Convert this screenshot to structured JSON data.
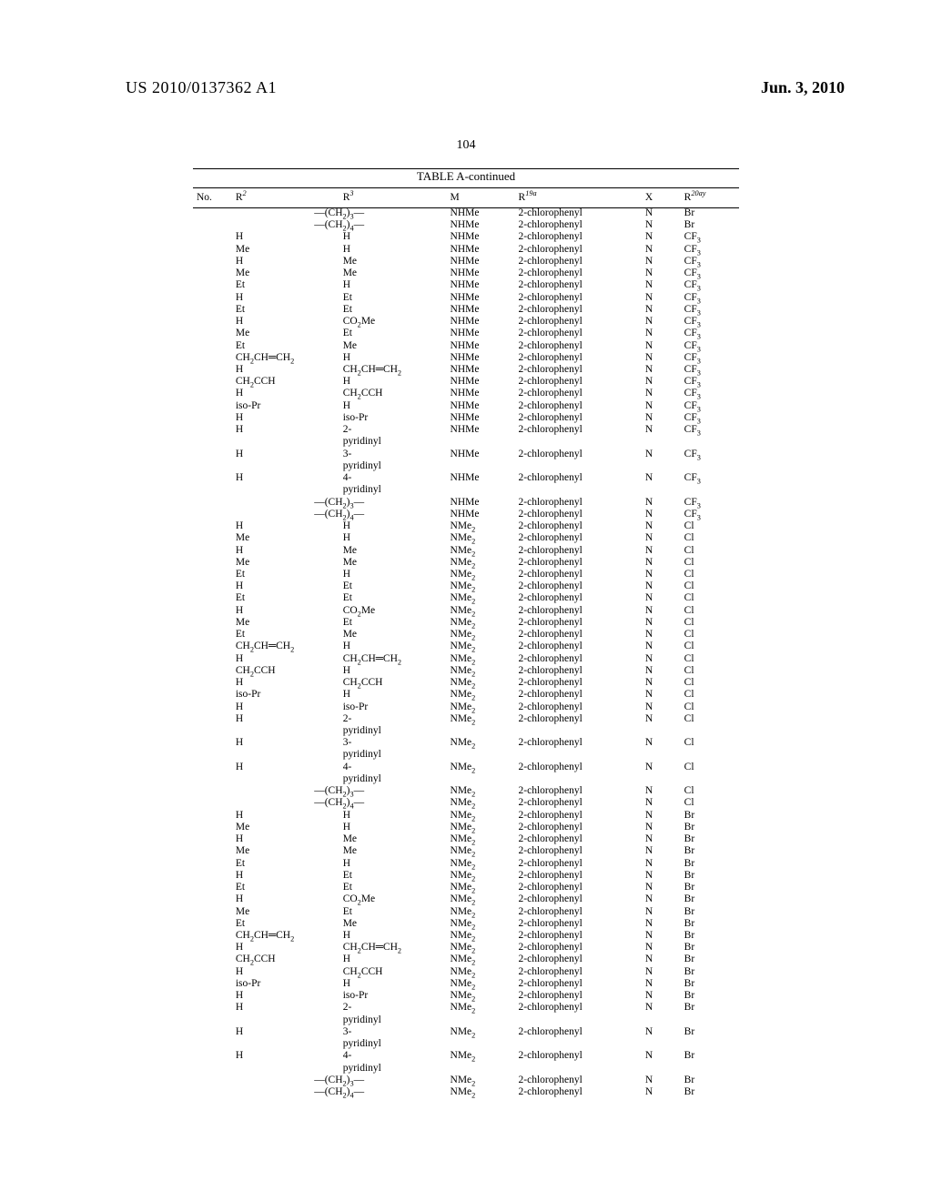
{
  "header": {
    "publication": "US 2010/0137362 A1",
    "date": "Jun. 3, 2010",
    "page": "104"
  },
  "table": {
    "title": "TABLE A-continued",
    "columns": {
      "no": "No.",
      "r2": "R^{2}",
      "r3": "R^{3}",
      "m": "M",
      "r19a": "R^{19a}",
      "x": "X",
      "r20ay": "R^{20ay}"
    },
    "rows": [
      {
        "r2": "",
        "r3": "—(CH_{2})_{3}—",
        "span": true,
        "m": "NHMe",
        "r19": "2-chlorophenyl",
        "x": "N",
        "r20": "Br"
      },
      {
        "r2": "",
        "r3": "—(CH_{2})_{4}—",
        "span": true,
        "m": "NHMe",
        "r19": "2-chlorophenyl",
        "x": "N",
        "r20": "Br"
      },
      {
        "r2": "H",
        "r3": "H",
        "m": "NHMe",
        "r19": "2-chlorophenyl",
        "x": "N",
        "r20": "CF_{3}"
      },
      {
        "r2": "Me",
        "r3": "H",
        "m": "NHMe",
        "r19": "2-chlorophenyl",
        "x": "N",
        "r20": "CF_{3}"
      },
      {
        "r2": "H",
        "r3": "Me",
        "m": "NHMe",
        "r19": "2-chlorophenyl",
        "x": "N",
        "r20": "CF_{3}"
      },
      {
        "r2": "Me",
        "r3": "Me",
        "m": "NHMe",
        "r19": "2-chlorophenyl",
        "x": "N",
        "r20": "CF_{3}"
      },
      {
        "r2": "Et",
        "r3": "H",
        "m": "NHMe",
        "r19": "2-chlorophenyl",
        "x": "N",
        "r20": "CF_{3}"
      },
      {
        "r2": "H",
        "r3": "Et",
        "m": "NHMe",
        "r19": "2-chlorophenyl",
        "x": "N",
        "r20": "CF_{3}"
      },
      {
        "r2": "Et",
        "r3": "Et",
        "m": "NHMe",
        "r19": "2-chlorophenyl",
        "x": "N",
        "r20": "CF_{3}"
      },
      {
        "r2": "H",
        "r3": "CO_{2}Me",
        "m": "NHMe",
        "r19": "2-chlorophenyl",
        "x": "N",
        "r20": "CF_{3}"
      },
      {
        "r2": "Me",
        "r3": "Et",
        "m": "NHMe",
        "r19": "2-chlorophenyl",
        "x": "N",
        "r20": "CF_{3}"
      },
      {
        "r2": "Et",
        "r3": "Me",
        "m": "NHMe",
        "r19": "2-chlorophenyl",
        "x": "N",
        "r20": "CF_{3}"
      },
      {
        "r2": "CH_{2}CH=CH_{2}",
        "r3": "H",
        "m": "NHMe",
        "r19": "2-chlorophenyl",
        "x": "N",
        "r20": "CF_{3}"
      },
      {
        "r2": "H",
        "r3": "CH_{2}CH=CH_{2}",
        "m": "NHMe",
        "r19": "2-chlorophenyl",
        "x": "N",
        "r20": "CF_{3}"
      },
      {
        "r2": "CH_{2}CCH",
        "r3": "H",
        "m": "NHMe",
        "r19": "2-chlorophenyl",
        "x": "N",
        "r20": "CF_{3}"
      },
      {
        "r2": "H",
        "r3": "CH_{2}CCH",
        "m": "NHMe",
        "r19": "2-chlorophenyl",
        "x": "N",
        "r20": "CF_{3}"
      },
      {
        "r2": "iso-Pr",
        "r3": "H",
        "m": "NHMe",
        "r19": "2-chlorophenyl",
        "x": "N",
        "r20": "CF_{3}"
      },
      {
        "r2": "H",
        "r3": "iso-Pr",
        "m": "NHMe",
        "r19": "2-chlorophenyl",
        "x": "N",
        "r20": "CF_{3}"
      },
      {
        "r2": "H",
        "r3": "2-\\npyridinyl",
        "m": "NHMe",
        "r19": "2-chlorophenyl",
        "x": "N",
        "r20": "CF_{3}"
      },
      {
        "r2": "H",
        "r3": "3-\\npyridinyl",
        "m": "NHMe",
        "r19": "2-chlorophenyl",
        "x": "N",
        "r20": "CF_{3}"
      },
      {
        "r2": "H",
        "r3": "4-\\npyridinyl",
        "m": "NHMe",
        "r19": "2-chlorophenyl",
        "x": "N",
        "r20": "CF_{3}"
      },
      {
        "r2": "",
        "r3": "—(CH_{2})_{3}—",
        "span": true,
        "m": "NHMe",
        "r19": "2-chlorophenyl",
        "x": "N",
        "r20": "CF_{3}"
      },
      {
        "r2": "",
        "r3": "—(CH_{2})_{4}—",
        "span": true,
        "m": "NHMe",
        "r19": "2-chlorophenyl",
        "x": "N",
        "r20": "CF_{3}"
      },
      {
        "r2": "H",
        "r3": "H",
        "m": "NMe_{2}",
        "r19": "2-chlorophenyl",
        "x": "N",
        "r20": "Cl"
      },
      {
        "r2": "Me",
        "r3": "H",
        "m": "NMe_{2}",
        "r19": "2-chlorophenyl",
        "x": "N",
        "r20": "Cl"
      },
      {
        "r2": "H",
        "r3": "Me",
        "m": "NMe_{2}",
        "r19": "2-chlorophenyl",
        "x": "N",
        "r20": "Cl"
      },
      {
        "r2": "Me",
        "r3": "Me",
        "m": "NMe_{2}",
        "r19": "2-chlorophenyl",
        "x": "N",
        "r20": "Cl"
      },
      {
        "r2": "Et",
        "r3": "H",
        "m": "NMe_{2}",
        "r19": "2-chlorophenyl",
        "x": "N",
        "r20": "Cl"
      },
      {
        "r2": "H",
        "r3": "Et",
        "m": "NMe_{2}",
        "r19": "2-chlorophenyl",
        "x": "N",
        "r20": "Cl"
      },
      {
        "r2": "Et",
        "r3": "Et",
        "m": "NMe_{2}",
        "r19": "2-chlorophenyl",
        "x": "N",
        "r20": "Cl"
      },
      {
        "r2": "H",
        "r3": "CO_{2}Me",
        "m": "NMe_{2}",
        "r19": "2-chlorophenyl",
        "x": "N",
        "r20": "Cl"
      },
      {
        "r2": "Me",
        "r3": "Et",
        "m": "NMe_{2}",
        "r19": "2-chlorophenyl",
        "x": "N",
        "r20": "Cl"
      },
      {
        "r2": "Et",
        "r3": "Me",
        "m": "NMe_{2}",
        "r19": "2-chlorophenyl",
        "x": "N",
        "r20": "Cl"
      },
      {
        "r2": "CH_{2}CH=CH_{2}",
        "r3": "H",
        "m": "NMe_{2}",
        "r19": "2-chlorophenyl",
        "x": "N",
        "r20": "Cl"
      },
      {
        "r2": "H",
        "r3": "CH_{2}CH=CH_{2}",
        "m": "NMe_{2}",
        "r19": "2-chlorophenyl",
        "x": "N",
        "r20": "Cl"
      },
      {
        "r2": "CH_{2}CCH",
        "r3": "H",
        "m": "NMe_{2}",
        "r19": "2-chlorophenyl",
        "x": "N",
        "r20": "Cl"
      },
      {
        "r2": "H",
        "r3": "CH_{2}CCH",
        "m": "NMe_{2}",
        "r19": "2-chlorophenyl",
        "x": "N",
        "r20": "Cl"
      },
      {
        "r2": "iso-Pr",
        "r3": "H",
        "m": "NMe_{2}",
        "r19": "2-chlorophenyl",
        "x": "N",
        "r20": "Cl"
      },
      {
        "r2": "H",
        "r3": "iso-Pr",
        "m": "NMe_{2}",
        "r19": "2-chlorophenyl",
        "x": "N",
        "r20": "Cl"
      },
      {
        "r2": "H",
        "r3": "2-\\npyridinyl",
        "m": "NMe_{2}",
        "r19": "2-chlorophenyl",
        "x": "N",
        "r20": "Cl"
      },
      {
        "r2": "H",
        "r3": "3-\\npyridinyl",
        "m": "NMe_{2}",
        "r19": "2-chlorophenyl",
        "x": "N",
        "r20": "Cl"
      },
      {
        "r2": "H",
        "r3": "4-\\npyridinyl",
        "m": "NMe_{2}",
        "r19": "2-chlorophenyl",
        "x": "N",
        "r20": "Cl"
      },
      {
        "r2": "",
        "r3": "—(CH_{2})_{3}—",
        "span": true,
        "m": "NMe_{2}",
        "r19": "2-chlorophenyl",
        "x": "N",
        "r20": "Cl"
      },
      {
        "r2": "",
        "r3": "—(CH_{2})_{4}—",
        "span": true,
        "m": "NMe_{2}",
        "r19": "2-chlorophenyl",
        "x": "N",
        "r20": "Cl"
      },
      {
        "r2": "H",
        "r3": "H",
        "m": "NMe_{2}",
        "r19": "2-chlorophenyl",
        "x": "N",
        "r20": "Br"
      },
      {
        "r2": "Me",
        "r3": "H",
        "m": "NMe_{2}",
        "r19": "2-chlorophenyl",
        "x": "N",
        "r20": "Br"
      },
      {
        "r2": "H",
        "r3": "Me",
        "m": "NMe_{2}",
        "r19": "2-chlorophenyl",
        "x": "N",
        "r20": "Br"
      },
      {
        "r2": "Me",
        "r3": "Me",
        "m": "NMe_{2}",
        "r19": "2-chlorophenyl",
        "x": "N",
        "r20": "Br"
      },
      {
        "r2": "Et",
        "r3": "H",
        "m": "NMe_{2}",
        "r19": "2-chlorophenyl",
        "x": "N",
        "r20": "Br"
      },
      {
        "r2": "H",
        "r3": "Et",
        "m": "NMe_{2}",
        "r19": "2-chlorophenyl",
        "x": "N",
        "r20": "Br"
      },
      {
        "r2": "Et",
        "r3": "Et",
        "m": "NMe_{2}",
        "r19": "2-chlorophenyl",
        "x": "N",
        "r20": "Br"
      },
      {
        "r2": "H",
        "r3": "CO_{2}Me",
        "m": "NMe_{2}",
        "r19": "2-chlorophenyl",
        "x": "N",
        "r20": "Br"
      },
      {
        "r2": "Me",
        "r3": "Et",
        "m": "NMe_{2}",
        "r19": "2-chlorophenyl",
        "x": "N",
        "r20": "Br"
      },
      {
        "r2": "Et",
        "r3": "Me",
        "m": "NMe_{2}",
        "r19": "2-chlorophenyl",
        "x": "N",
        "r20": "Br"
      },
      {
        "r2": "CH_{2}CH=CH_{2}",
        "r3": "H",
        "m": "NMe_{2}",
        "r19": "2-chlorophenyl",
        "x": "N",
        "r20": "Br"
      },
      {
        "r2": "H",
        "r3": "CH_{2}CH=CH_{2}",
        "m": "NMe_{2}",
        "r19": "2-chlorophenyl",
        "x": "N",
        "r20": "Br"
      },
      {
        "r2": "CH_{2}CCH",
        "r3": "H",
        "m": "NMe_{2}",
        "r19": "2-chlorophenyl",
        "x": "N",
        "r20": "Br"
      },
      {
        "r2": "H",
        "r3": "CH_{2}CCH",
        "m": "NMe_{2}",
        "r19": "2-chlorophenyl",
        "x": "N",
        "r20": "Br"
      },
      {
        "r2": "iso-Pr",
        "r3": "H",
        "m": "NMe_{2}",
        "r19": "2-chlorophenyl",
        "x": "N",
        "r20": "Br"
      },
      {
        "r2": "H",
        "r3": "iso-Pr",
        "m": "NMe_{2}",
        "r19": "2-chlorophenyl",
        "x": "N",
        "r20": "Br"
      },
      {
        "r2": "H",
        "r3": "2-\\npyridinyl",
        "m": "NMe_{2}",
        "r19": "2-chlorophenyl",
        "x": "N",
        "r20": "Br"
      },
      {
        "r2": "H",
        "r3": "3-\\npyridinyl",
        "m": "NMe_{2}",
        "r19": "2-chlorophenyl",
        "x": "N",
        "r20": "Br"
      },
      {
        "r2": "H",
        "r3": "4-\\npyridinyl",
        "m": "NMe_{2}",
        "r19": "2-chlorophenyl",
        "x": "N",
        "r20": "Br"
      },
      {
        "r2": "",
        "r3": "—(CH_{2})_{3}—",
        "span": true,
        "m": "NMe_{2}",
        "r19": "2-chlorophenyl",
        "x": "N",
        "r20": "Br"
      },
      {
        "r2": "",
        "r3": "—(CH_{2})_{4}—",
        "span": true,
        "m": "NMe_{2}",
        "r19": "2-chlorophenyl",
        "x": "N",
        "r20": "Br"
      }
    ]
  }
}
